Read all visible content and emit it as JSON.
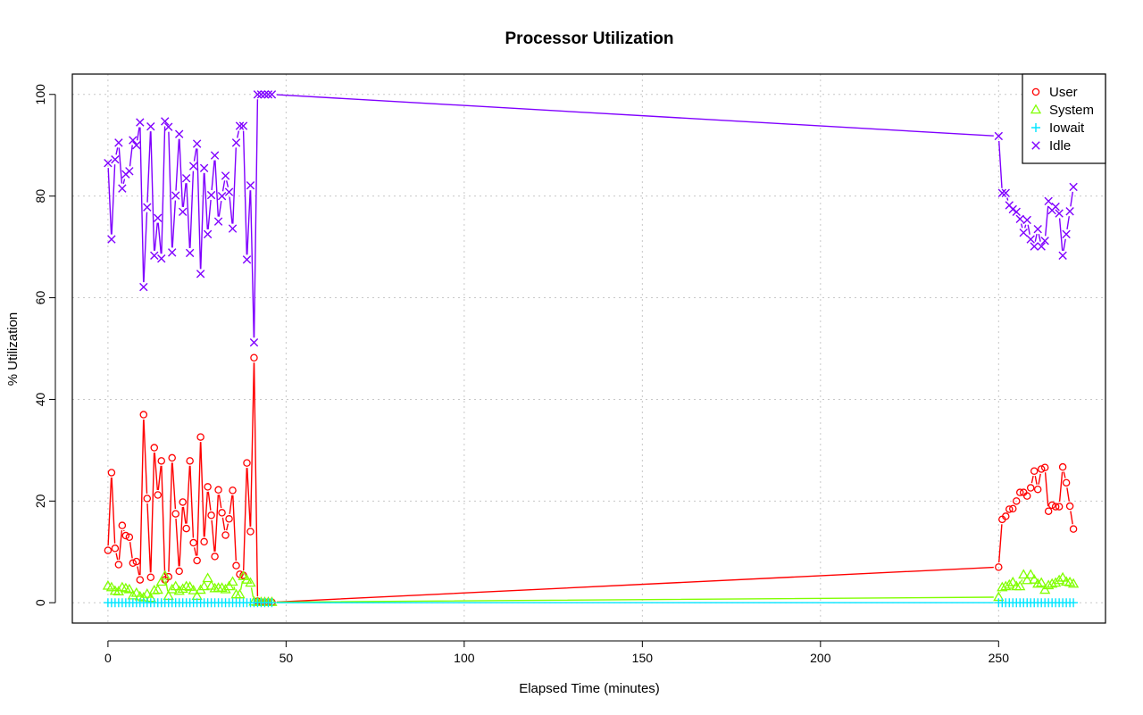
{
  "chart_data": {
    "type": "line",
    "title": "Processor Utilization",
    "xlabel": "Elapsed Time (minutes)",
    "ylabel": "% Utilization",
    "xlim": [
      -10,
      280
    ],
    "ylim": [
      -4,
      104
    ],
    "x_ticks": [
      0,
      50,
      100,
      150,
      200,
      250
    ],
    "y_ticks": [
      0,
      20,
      40,
      60,
      80,
      100
    ],
    "grid": true,
    "legend_position": "top-right",
    "x": [
      0,
      1,
      2,
      3,
      4,
      5,
      6,
      7,
      8,
      9,
      10,
      11,
      12,
      13,
      14,
      15,
      16,
      17,
      18,
      19,
      20,
      21,
      22,
      23,
      24,
      25,
      26,
      27,
      28,
      29,
      30,
      31,
      32,
      33,
      34,
      35,
      36,
      37,
      38,
      39,
      40,
      41,
      42,
      43,
      44,
      45,
      46,
      250,
      251,
      252,
      253,
      254,
      255,
      256,
      257,
      258,
      259,
      260,
      261,
      262,
      263,
      264,
      265,
      266,
      267,
      268,
      269,
      270,
      271
    ],
    "series": [
      {
        "name": "User",
        "color": "#ff0000",
        "marker": "circle",
        "values": [
          10.3,
          25.6,
          10.7,
          7.5,
          15.2,
          13.2,
          12.9,
          7.8,
          8.1,
          4.5,
          37,
          20.5,
          5,
          30.5,
          21.2,
          27.9,
          4.5,
          5.1,
          28.5,
          17.5,
          6.2,
          19.8,
          14.6,
          27.9,
          11.8,
          8.3,
          32.6,
          12,
          22.8,
          17.2,
          9.1,
          22.2,
          17.7,
          13.3,
          16.5,
          22.1,
          7.3,
          5.6,
          5.4,
          27.5,
          14,
          48.2,
          0.3,
          0.1,
          0.1,
          0.1,
          0.1,
          7,
          16.4,
          17,
          18.4,
          18.5,
          20,
          21.7,
          21.7,
          21,
          22.6,
          25.9,
          22.3,
          26.3,
          26.6,
          18,
          19.2,
          18.9,
          18.9,
          26.7,
          23.6,
          19,
          14.5
        ]
      },
      {
        "name": "System",
        "color": "#80ff00",
        "marker": "triangle",
        "values": [
          3.3,
          3,
          2.3,
          2.2,
          3,
          2.8,
          2.6,
          1.4,
          1.9,
          1.2,
          1,
          1.7,
          0.9,
          2.4,
          2.5,
          4.1,
          5.3,
          1.3,
          2.6,
          3.2,
          2.3,
          2.7,
          3.2,
          3.1,
          2.4,
          1.3,
          2.5,
          3.2,
          4.8,
          3.3,
          2.8,
          2.9,
          2.9,
          2.6,
          3.2,
          4.1,
          1.6,
          1.6,
          5.2,
          4.5,
          3.9,
          0.2,
          0.1,
          0.1,
          0.1,
          0.1,
          0.1,
          1.1,
          3,
          3.2,
          3.5,
          4,
          3.2,
          3.2,
          5.5,
          4.4,
          5.5,
          4.5,
          3.7,
          3.9,
          2.5,
          3.4,
          3.7,
          3.9,
          4.4,
          4.9,
          4.1,
          4,
          3.7
        ]
      },
      {
        "name": "Iowait",
        "color": "#00e5ff",
        "marker": "plus",
        "values": [
          0,
          0,
          0,
          0,
          0,
          0,
          0,
          0,
          0,
          0,
          0,
          0,
          0,
          0,
          0,
          0,
          0,
          0,
          0,
          0,
          0,
          0,
          0,
          0,
          0,
          0,
          0,
          0,
          0,
          0,
          0,
          0,
          0,
          0,
          0,
          0,
          0,
          0,
          0,
          0,
          0,
          0,
          0,
          0,
          0,
          0,
          0,
          0,
          0,
          0,
          0,
          0,
          0,
          0,
          0,
          0,
          0,
          0,
          0,
          0,
          0,
          0,
          0,
          0,
          0,
          0,
          0,
          0,
          0
        ]
      },
      {
        "name": "Idle",
        "color": "#8000ff",
        "marker": "cross",
        "values": [
          86.5,
          71.5,
          87.2,
          90.5,
          81.5,
          84.3,
          84.9,
          91,
          90,
          94.5,
          62.1,
          77.8,
          93.7,
          68.3,
          75.7,
          67.7,
          94.7,
          93.6,
          68.9,
          80.1,
          92.2,
          76.9,
          83.5,
          68.8,
          85.9,
          90.3,
          64.7,
          85.5,
          72.5,
          80.2,
          88,
          75,
          80,
          84,
          80.8,
          73.6,
          90.5,
          93.8,
          93.8,
          67.5,
          82.1,
          51.2,
          100,
          100,
          100,
          100,
          100,
          91.8,
          80.6,
          80.6,
          78.2,
          77.4,
          76.9,
          75.5,
          72.8,
          75.3,
          71.5,
          70.1,
          73.5,
          70.1,
          71.2,
          79,
          77.2,
          77.9,
          76.6,
          68.3,
          72.5,
          77,
          81.8
        ]
      }
    ]
  }
}
